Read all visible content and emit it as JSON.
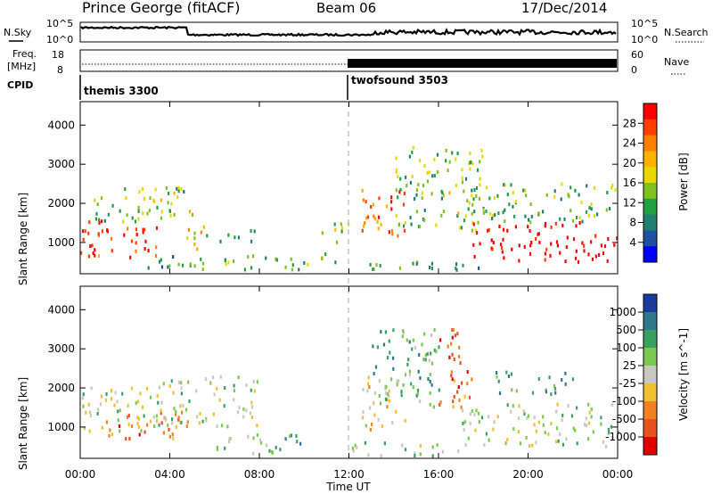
{
  "header": {
    "station": "Prince George (fitACF)",
    "beam": "Beam 06",
    "date": "17/Dec/2014"
  },
  "summary_panels": {
    "nsky_label": "N.Sky",
    "nsky_ticks": [
      "10^5",
      "10^0"
    ],
    "nsearch_label": "N.Search",
    "nsearch_ticks": [
      "10^5",
      "10^0"
    ],
    "freq_label": "Freq.",
    "freq_unit": "[MHz]",
    "freq_ticks": [
      "18",
      "8"
    ],
    "nave_label": "Nave",
    "nave_ticks": [
      "60",
      "0"
    ],
    "cpid_label": "CPID",
    "cpid_segments": [
      {
        "name": "themis 3300",
        "start_hour": 0
      },
      {
        "name": "twofsound 3503",
        "start_hour": 12
      }
    ]
  },
  "axes": {
    "ylabel": "Slant Range [km]",
    "yticks": [
      1000,
      2000,
      3000,
      4000
    ],
    "xlabel": "Time UT",
    "xticks": [
      "00:00",
      "04:00",
      "08:00",
      "12:00",
      "16:00",
      "20:00",
      "00:00"
    ],
    "xlim_hours": [
      0,
      24
    ],
    "ylim_km": [
      200,
      4600
    ],
    "dashed_marker_hour": 12
  },
  "colorbars": {
    "power": {
      "label": "Power [dB]",
      "ticks": [
        "28",
        "24",
        "20",
        "16",
        "12",
        "8",
        "4"
      ],
      "colors": [
        "#ff0000",
        "#ff4000",
        "#ff8000",
        "#ffb000",
        "#e8d800",
        "#80c020",
        "#20a040",
        "#208070",
        "#2050a0",
        "#0000ff"
      ]
    },
    "velocity": {
      "label": "Velocity [m s^-1]",
      "ticks": [
        "1000",
        "500",
        "100",
        "25",
        "-25",
        "-100",
        "-500",
        "-1000"
      ],
      "colors": [
        "#1a3aa0",
        "#2f7a8a",
        "#3aa060",
        "#7ac850",
        "#c8c8c0",
        "#f0c030",
        "#f08020",
        "#e85020",
        "#e00000"
      ]
    }
  },
  "chart_data": [
    {
      "type": "heatmap",
      "title": "Power",
      "xlabel": "Time UT",
      "ylabel": "Slant Range [km]",
      "xlim": [
        0,
        24
      ],
      "ylim": [
        200,
        4600
      ],
      "colorbar": "Power [dB]",
      "regions": [
        {
          "t": [
            0.0,
            3.5
          ],
          "r": [
            600,
            1600
          ],
          "level": 0.85
        },
        {
          "t": [
            0.5,
            5.0
          ],
          "r": [
            1500,
            2500
          ],
          "level": 0.45
        },
        {
          "t": [
            4.5,
            5.5
          ],
          "r": [
            800,
            1500
          ],
          "level": 0.6
        },
        {
          "t": [
            5.5,
            8.0
          ],
          "r": [
            1000,
            1300
          ],
          "level": 0.3
        },
        {
          "t": [
            3.0,
            11.5
          ],
          "r": [
            300,
            700
          ],
          "level": 0.35
        },
        {
          "t": [
            10.5,
            12.0
          ],
          "r": [
            1000,
            1500
          ],
          "level": 0.5
        },
        {
          "t": [
            12.5,
            14.5
          ],
          "r": [
            1100,
            2400
          ],
          "level": 0.8
        },
        {
          "t": [
            14.0,
            16.0
          ],
          "r": [
            1400,
            3500
          ],
          "level": 0.4
        },
        {
          "t": [
            16.0,
            18.0
          ],
          "r": [
            1300,
            3400
          ],
          "level": 0.45
        },
        {
          "t": [
            17.5,
            24.0
          ],
          "r": [
            500,
            1500
          ],
          "level": 1.0
        },
        {
          "t": [
            17.0,
            24.0
          ],
          "r": [
            1500,
            2500
          ],
          "level": 0.4
        },
        {
          "t": [
            12.0,
            18.0
          ],
          "r": [
            250,
            500
          ],
          "level": 0.3
        }
      ]
    },
    {
      "type": "heatmap",
      "title": "Velocity",
      "xlabel": "Time UT",
      "ylabel": "Slant Range [km]",
      "xlim": [
        0,
        24
      ],
      "ylim": [
        200,
        4600
      ],
      "colorbar": "Velocity [m s^-1]",
      "regions": [
        {
          "t": [
            0.0,
            3.0
          ],
          "r": [
            800,
            2000
          ],
          "level": 0.45
        },
        {
          "t": [
            1.0,
            5.0
          ],
          "r": [
            700,
            1400
          ],
          "level": 0.75
        },
        {
          "t": [
            3.0,
            8.0
          ],
          "r": [
            1000,
            2300
          ],
          "level": 0.45
        },
        {
          "t": [
            6.0,
            10.0
          ],
          "r": [
            250,
            800
          ],
          "level": 0.35
        },
        {
          "t": [
            12.5,
            14.5
          ],
          "r": [
            900,
            2300
          ],
          "level": 0.6
        },
        {
          "t": [
            13.0,
            16.0
          ],
          "r": [
            1500,
            3500
          ],
          "level": 0.3
        },
        {
          "t": [
            16.0,
            17.5
          ],
          "r": [
            1500,
            3500
          ],
          "level": 0.8
        },
        {
          "t": [
            17.0,
            24.0
          ],
          "r": [
            500,
            1600
          ],
          "level": 0.45
        },
        {
          "t": [
            18.5,
            22.0
          ],
          "r": [
            1800,
            2400
          ],
          "level": 0.3
        },
        {
          "t": [
            12.0,
            17.0
          ],
          "r": [
            250,
            600
          ],
          "level": 0.4
        }
      ]
    }
  ]
}
